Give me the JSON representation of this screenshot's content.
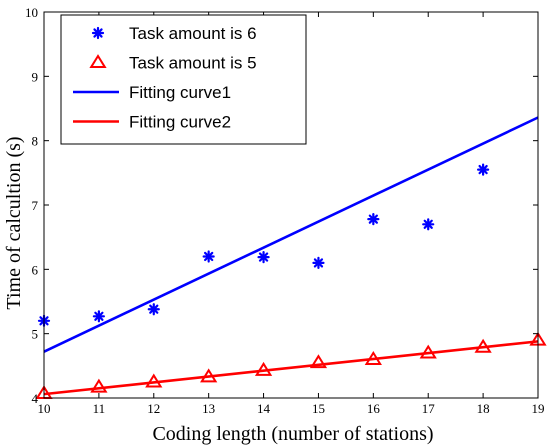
{
  "chart_data": {
    "type": "scatter",
    "xlabel": "Coding length (number of stations)",
    "ylabel": "Time of calcultion (s)",
    "xlim": [
      10,
      19
    ],
    "ylim": [
      4,
      10
    ],
    "xticks": [
      "10",
      "11",
      "12",
      "13",
      "14",
      "15",
      "16",
      "17",
      "18",
      "19"
    ],
    "yticks": [
      "4",
      "5",
      "6",
      "7",
      "8",
      "9",
      "10"
    ],
    "grid": false,
    "legend_position": "top-left",
    "colors": {
      "blue": "#0000ff",
      "red": "#ff0000"
    },
    "series": [
      {
        "name": "Task amount is 6",
        "kind": "markers",
        "marker": "asterisk",
        "color": "#0000ff",
        "x": [
          10,
          11,
          12,
          13,
          14,
          15,
          16,
          17,
          18
        ],
        "y": [
          5.2,
          5.27,
          5.38,
          6.2,
          6.19,
          6.1,
          6.78,
          6.7,
          7.55
        ]
      },
      {
        "name": "Task amount is 5",
        "kind": "markers",
        "marker": "triangle",
        "color": "#ff0000",
        "x": [
          10,
          11,
          12,
          13,
          14,
          15,
          16,
          17,
          18,
          19
        ],
        "y": [
          4.07,
          4.17,
          4.25,
          4.33,
          4.43,
          4.55,
          4.6,
          4.7,
          4.79,
          4.9
        ]
      },
      {
        "name": "Fitting curve1",
        "kind": "line",
        "color": "#0000ff",
        "x": [
          10,
          19
        ],
        "y": [
          4.72,
          8.36
        ]
      },
      {
        "name": "Fitting curve2",
        "kind": "line",
        "color": "#ff0000",
        "x": [
          10,
          19
        ],
        "y": [
          4.06,
          4.88
        ]
      }
    ]
  }
}
